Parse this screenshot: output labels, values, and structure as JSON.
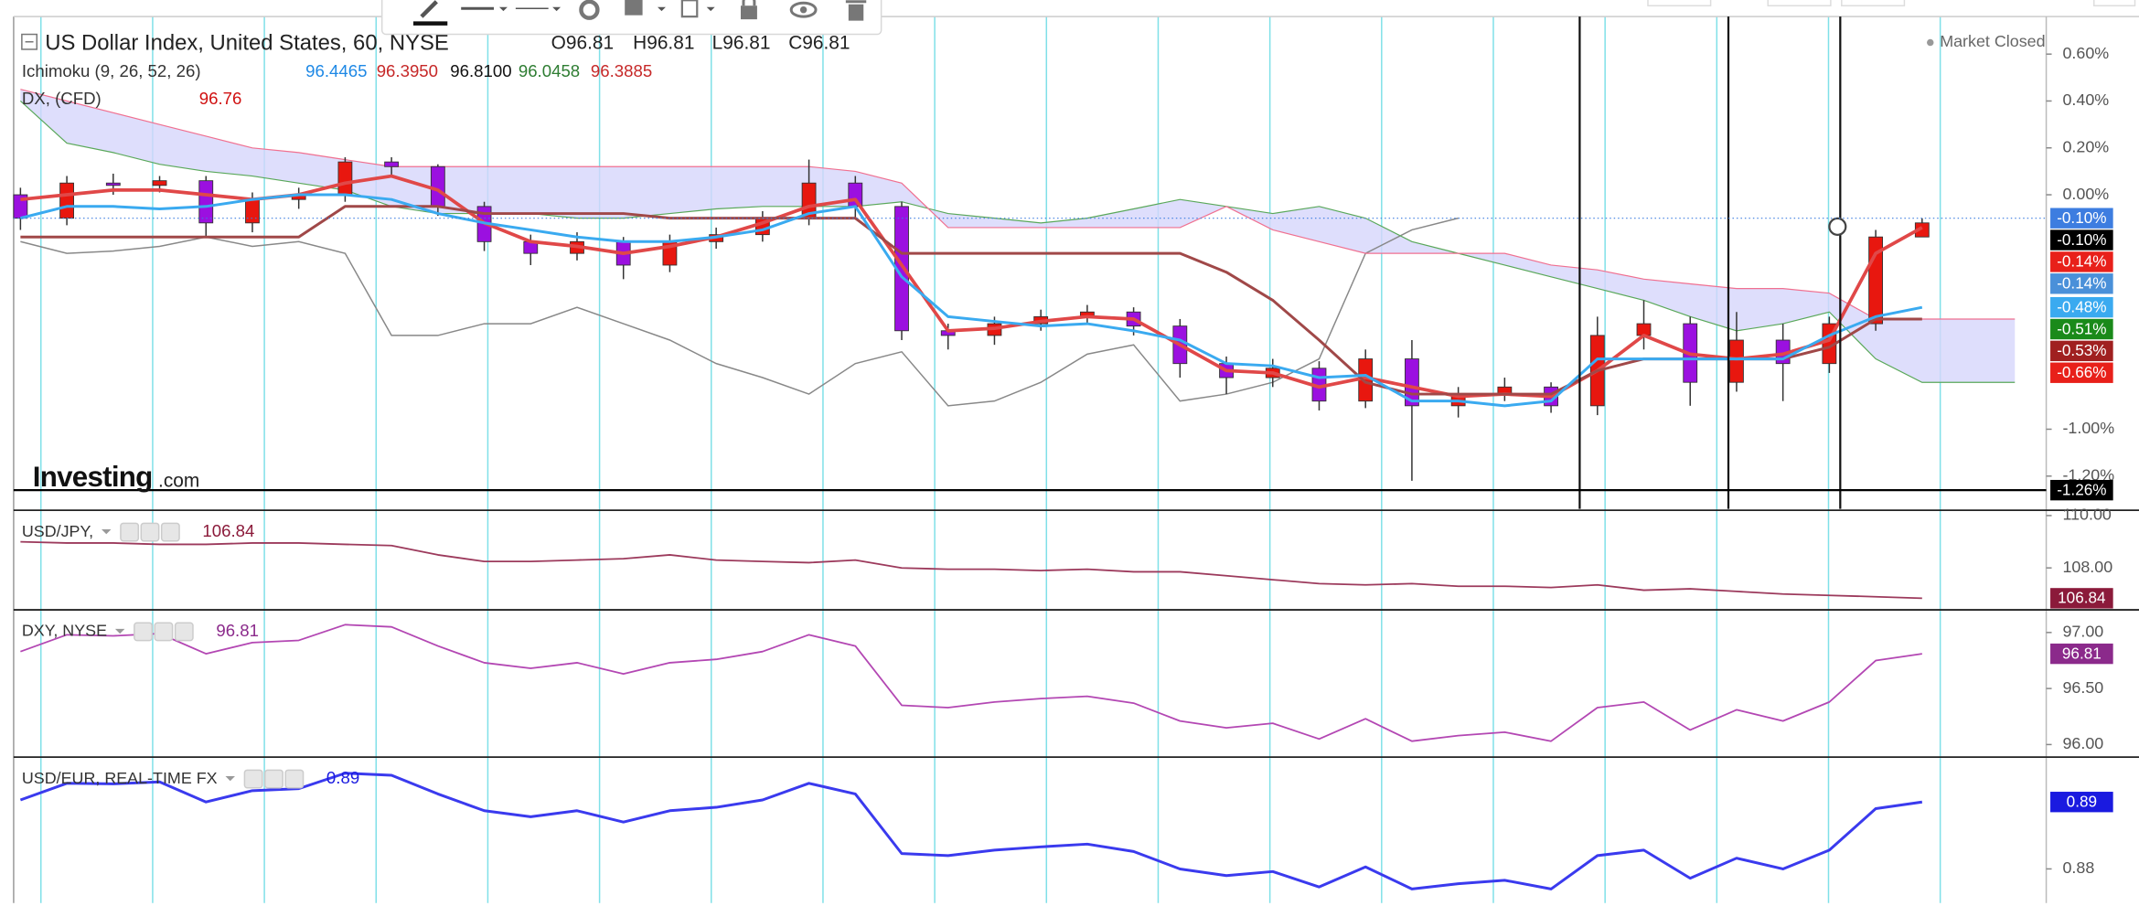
{
  "header": {
    "title": "US Dollar Index, United States, 60, NYSE",
    "ohlc": [
      "O96.81",
      "H96.81",
      "L96.81",
      "C96.81"
    ],
    "indicator": "Ichimoku (9, 26, 52, 26)",
    "indicator_values": [
      {
        "text": "96.4465",
        "color": "#1e88e5"
      },
      {
        "text": "96.3950",
        "color": "#c62828"
      },
      {
        "text": "96.8100",
        "color": "#111111"
      },
      {
        "text": "96.0458",
        "color": "#2e7d32"
      },
      {
        "text": "96.3885",
        "color": "#c62828"
      }
    ],
    "overlay": "DX, (CFD)",
    "overlay_value": "96.76",
    "status": "Market Closed",
    "logo": "Investing",
    "logo_suffix": ".com"
  },
  "chart_data": [
    {
      "type": "candlestick",
      "up_color": "#e8170f",
      "down_color": "#9b10e0",
      "open": [
        0.0,
        -0.1,
        0.05,
        0.04,
        0.06,
        -0.12,
        -0.02,
        0.0,
        0.14,
        0.12,
        -0.05,
        -0.2,
        -0.25,
        -0.2,
        -0.3,
        -0.2,
        -0.17,
        -0.1,
        0.05,
        -0.05,
        -0.58,
        -0.6,
        -0.55,
        -0.52,
        -0.5,
        -0.56,
        -0.72,
        -0.78,
        -0.74,
        -0.88,
        -0.7,
        -0.9,
        -0.85,
        -0.82,
        -0.9,
        -0.6,
        -0.55,
        -0.8,
        -0.62,
        -0.72,
        -0.55,
        -0.18,
        null,
        null
      ],
      "high": [
        0.03,
        0.08,
        0.09,
        0.08,
        0.08,
        0.01,
        0.03,
        0.16,
        0.16,
        0.13,
        -0.03,
        -0.17,
        -0.16,
        -0.18,
        -0.17,
        -0.14,
        -0.07,
        0.15,
        0.08,
        -0.03,
        -0.55,
        -0.52,
        -0.49,
        -0.47,
        -0.48,
        -0.53,
        -0.69,
        -0.7,
        -0.71,
        -0.66,
        -0.62,
        -0.82,
        -0.78,
        -0.8,
        -0.52,
        -0.45,
        -0.52,
        -0.5,
        -0.55,
        -0.52,
        -0.15,
        -0.1,
        null,
        null
      ],
      "low": [
        -0.15,
        -0.13,
        0.0,
        0.01,
        -0.18,
        -0.16,
        -0.06,
        -0.03,
        0.08,
        -0.09,
        -0.24,
        -0.3,
        -0.28,
        -0.36,
        -0.33,
        -0.23,
        -0.2,
        -0.13,
        -0.1,
        -0.62,
        -0.66,
        -0.64,
        -0.58,
        -0.55,
        -0.6,
        -0.78,
        -0.85,
        -0.82,
        -0.92,
        -0.91,
        -1.22,
        -0.95,
        -0.88,
        -0.93,
        -0.94,
        -0.66,
        -0.9,
        -0.84,
        -0.88,
        -0.76,
        -0.58,
        -0.16,
        null,
        null
      ],
      "close": [
        -0.1,
        0.05,
        0.04,
        0.06,
        -0.12,
        -0.02,
        0.0,
        0.14,
        0.12,
        -0.05,
        -0.2,
        -0.25,
        -0.2,
        -0.3,
        -0.2,
        -0.17,
        -0.1,
        0.05,
        -0.05,
        -0.58,
        -0.6,
        -0.55,
        -0.52,
        -0.5,
        -0.56,
        -0.72,
        -0.78,
        -0.74,
        -0.88,
        -0.7,
        -0.9,
        -0.85,
        -0.82,
        -0.9,
        -0.6,
        -0.55,
        -0.8,
        -0.62,
        -0.72,
        -0.55,
        -0.18,
        -0.12,
        null,
        null
      ],
      "series": [
        {
          "color": "#e04848",
          "width": 2.5,
          "values": [
            -0.02,
            0.0,
            0.02,
            0.02,
            0.0,
            -0.02,
            0.0,
            0.05,
            0.08,
            0.02,
            -0.12,
            -0.2,
            -0.22,
            -0.25,
            -0.22,
            -0.18,
            -0.12,
            -0.05,
            -0.02,
            -0.3,
            -0.58,
            -0.57,
            -0.54,
            -0.52,
            -0.53,
            -0.64,
            -0.75,
            -0.76,
            -0.82,
            -0.78,
            -0.82,
            -0.86,
            -0.85,
            -0.86,
            -0.75,
            -0.6,
            -0.68,
            -0.7,
            -0.68,
            -0.62,
            -0.25,
            -0.14,
            null,
            null
          ]
        },
        {
          "color": "#a04848",
          "width": 2,
          "values": [
            -0.18,
            -0.18,
            -0.18,
            -0.18,
            -0.18,
            -0.18,
            -0.18,
            -0.05,
            -0.05,
            -0.05,
            -0.08,
            -0.08,
            -0.08,
            -0.08,
            -0.1,
            -0.1,
            -0.1,
            -0.1,
            -0.1,
            -0.25,
            -0.25,
            -0.25,
            -0.25,
            -0.25,
            -0.25,
            -0.25,
            -0.33,
            -0.45,
            -0.62,
            -0.8,
            -0.85,
            -0.85,
            -0.85,
            -0.85,
            -0.75,
            -0.7,
            -0.7,
            -0.7,
            -0.7,
            -0.65,
            -0.53,
            -0.53,
            null,
            null
          ]
        },
        {
          "color": "#3aaaf0",
          "width": 2,
          "values": [
            -0.1,
            -0.05,
            -0.05,
            -0.06,
            -0.05,
            -0.02,
            0.0,
            0.0,
            -0.02,
            -0.08,
            -0.12,
            -0.15,
            -0.18,
            -0.2,
            -0.2,
            -0.18,
            -0.15,
            -0.08,
            -0.05,
            -0.35,
            -0.52,
            -0.54,
            -0.56,
            -0.55,
            -0.58,
            -0.62,
            -0.72,
            -0.73,
            -0.78,
            -0.77,
            -0.88,
            -0.88,
            -0.9,
            -0.88,
            -0.7,
            -0.7,
            -0.7,
            -0.7,
            -0.7,
            -0.6,
            -0.52,
            -0.48,
            null,
            null
          ]
        },
        {
          "color": "#888888",
          "width": 1,
          "values": [
            -0.2,
            -0.25,
            -0.24,
            -0.22,
            -0.18,
            -0.22,
            -0.2,
            -0.25,
            -0.6,
            -0.6,
            -0.55,
            -0.55,
            -0.48,
            -0.55,
            -0.62,
            -0.72,
            -0.78,
            -0.85,
            -0.72,
            -0.67,
            -0.9,
            -0.88,
            -0.8,
            -0.68,
            -0.64,
            -0.88,
            -0.85,
            -0.8,
            -0.7,
            -0.25,
            -0.15,
            -0.1,
            null,
            null,
            null,
            null,
            null,
            null,
            null,
            null,
            null,
            null,
            null,
            null
          ]
        },
        {
          "color": "#5aa85a",
          "width": 0.8,
          "values": [
            0.4,
            0.22,
            0.18,
            0.13,
            0.1,
            0.08,
            0.05,
            0.02,
            -0.05,
            -0.08,
            -0.08,
            -0.08,
            -0.1,
            -0.1,
            -0.08,
            -0.06,
            -0.05,
            -0.05,
            -0.05,
            -0.03,
            -0.08,
            -0.1,
            -0.12,
            -0.1,
            -0.06,
            -0.02,
            -0.05,
            -0.08,
            -0.05,
            -0.1,
            -0.2,
            -0.25,
            -0.3,
            -0.35,
            -0.4,
            -0.45,
            -0.52,
            -0.58,
            -0.55,
            -0.5,
            -0.7,
            -0.8,
            -0.8,
            -0.8
          ]
        },
        {
          "color": "#f07090",
          "width": 0.8,
          "values": [
            0.45,
            0.4,
            0.35,
            0.3,
            0.25,
            0.2,
            0.18,
            0.15,
            0.12,
            0.12,
            0.12,
            0.12,
            0.12,
            0.12,
            0.12,
            0.12,
            0.12,
            0.12,
            0.1,
            0.05,
            -0.14,
            -0.14,
            -0.14,
            -0.14,
            -0.14,
            -0.14,
            -0.05,
            -0.15,
            -0.2,
            -0.25,
            -0.25,
            -0.25,
            -0.25,
            -0.3,
            -0.32,
            -0.36,
            -0.38,
            -0.4,
            -0.4,
            -0.42,
            -0.53,
            -0.53,
            -0.53,
            -0.53
          ]
        }
      ],
      "cloud_color": "#d6d6fb",
      "ylim": [
        -1.34,
        0.76
      ],
      "yticks": [
        {
          "value": 0.6,
          "label": "0.60%"
        },
        {
          "value": 0.4,
          "label": "0.40%"
        },
        {
          "value": 0.2,
          "label": "0.20%"
        },
        {
          "value": 0,
          "label": "0.00%"
        },
        {
          "value": -1.0,
          "label": "-1.00%"
        },
        {
          "value": -1.2,
          "label": "-1.20%"
        }
      ],
      "price_labels": [
        {
          "value": -0.1,
          "label": "-0.10%",
          "color": "#3d7de0"
        },
        {
          "value": -0.1,
          "label": "-0.10%",
          "color": "#000000"
        },
        {
          "value": -0.14,
          "label": "-0.14%",
          "color": "#e8201a"
        },
        {
          "value": -0.14,
          "label": "-0.14%",
          "color": "#4a90d9"
        },
        {
          "value": -0.48,
          "label": "-0.48%",
          "color": "#3aaaf0"
        },
        {
          "value": -0.51,
          "label": "-0.51%",
          "color": "#1a8a1a"
        },
        {
          "value": -0.53,
          "label": "-0.53%",
          "color": "#a02020"
        },
        {
          "value": -0.66,
          "label": "-0.66%",
          "color": "#e8201a"
        }
      ],
      "hline": {
        "value": -1.26,
        "label": "-1.26%",
        "color": "#000000"
      }
    },
    {
      "type": "line",
      "title": "USD/JPY,",
      "last": 106.84,
      "last_color": "#8b1a3a",
      "series": [
        {
          "color": "#9c3a5c",
          "width": 1.2,
          "values": [
            109.0,
            108.95,
            108.95,
            108.9,
            108.9,
            108.95,
            108.95,
            108.9,
            108.85,
            108.5,
            108.25,
            108.25,
            108.3,
            108.35,
            108.5,
            108.3,
            108.25,
            108.2,
            108.3,
            108.0,
            107.95,
            107.95,
            107.9,
            107.95,
            107.85,
            107.85,
            107.7,
            107.55,
            107.4,
            107.35,
            107.4,
            107.3,
            107.3,
            107.25,
            107.35,
            107.15,
            107.2,
            107.1,
            107.0,
            106.95,
            106.9,
            106.84,
            null,
            null
          ]
        }
      ],
      "ylim": [
        106.45,
        110.15
      ],
      "yticks": [
        {
          "value": 110,
          "label": "110.00"
        },
        {
          "value": 108,
          "label": "108.00"
        }
      ]
    },
    {
      "type": "line",
      "title": "DXY, NYSE",
      "last": 96.81,
      "last_color": "#8b2a8b",
      "series": [
        {
          "color": "#b347b3",
          "width": 1.2,
          "values": [
            96.83,
            96.98,
            96.97,
            96.99,
            96.81,
            96.91,
            96.93,
            97.07,
            97.05,
            96.88,
            96.73,
            96.68,
            96.73,
            96.63,
            96.73,
            96.76,
            96.83,
            96.98,
            96.88,
            96.35,
            96.33,
            96.38,
            96.41,
            96.43,
            96.37,
            96.21,
            96.15,
            96.19,
            96.05,
            96.23,
            96.03,
            96.08,
            96.11,
            96.03,
            96.33,
            96.38,
            96.13,
            96.31,
            96.21,
            96.38,
            96.75,
            96.81,
            null,
            null
          ]
        }
      ],
      "ylim": [
        95.9,
        97.19
      ],
      "yticks": [
        {
          "value": 97,
          "label": "97.00"
        },
        {
          "value": 96.5,
          "label": "96.50"
        },
        {
          "value": 96,
          "label": "96.00"
        }
      ]
    },
    {
      "type": "line",
      "title": "USD/EUR, REAL-TIME FX",
      "last": 0.89,
      "last_color": "#1a1ae0",
      "series": [
        {
          "color": "#3a3aee",
          "width": 2,
          "values": [
            0.8903,
            0.8928,
            0.8927,
            0.893,
            0.89,
            0.8917,
            0.892,
            0.8943,
            0.894,
            0.8912,
            0.8887,
            0.8878,
            0.8887,
            0.887,
            0.8887,
            0.8892,
            0.8903,
            0.8928,
            0.8912,
            0.8823,
            0.882,
            0.8828,
            0.8833,
            0.8837,
            0.8826,
            0.88,
            0.879,
            0.8796,
            0.8773,
            0.8803,
            0.877,
            0.8778,
            0.8783,
            0.877,
            0.882,
            0.8828,
            0.8786,
            0.8816,
            0.88,
            0.8828,
            0.889,
            0.89,
            null,
            null
          ]
        }
      ],
      "ylim": [
        0.8749,
        0.8965
      ],
      "yticks": [
        0.88
      ]
    }
  ]
}
